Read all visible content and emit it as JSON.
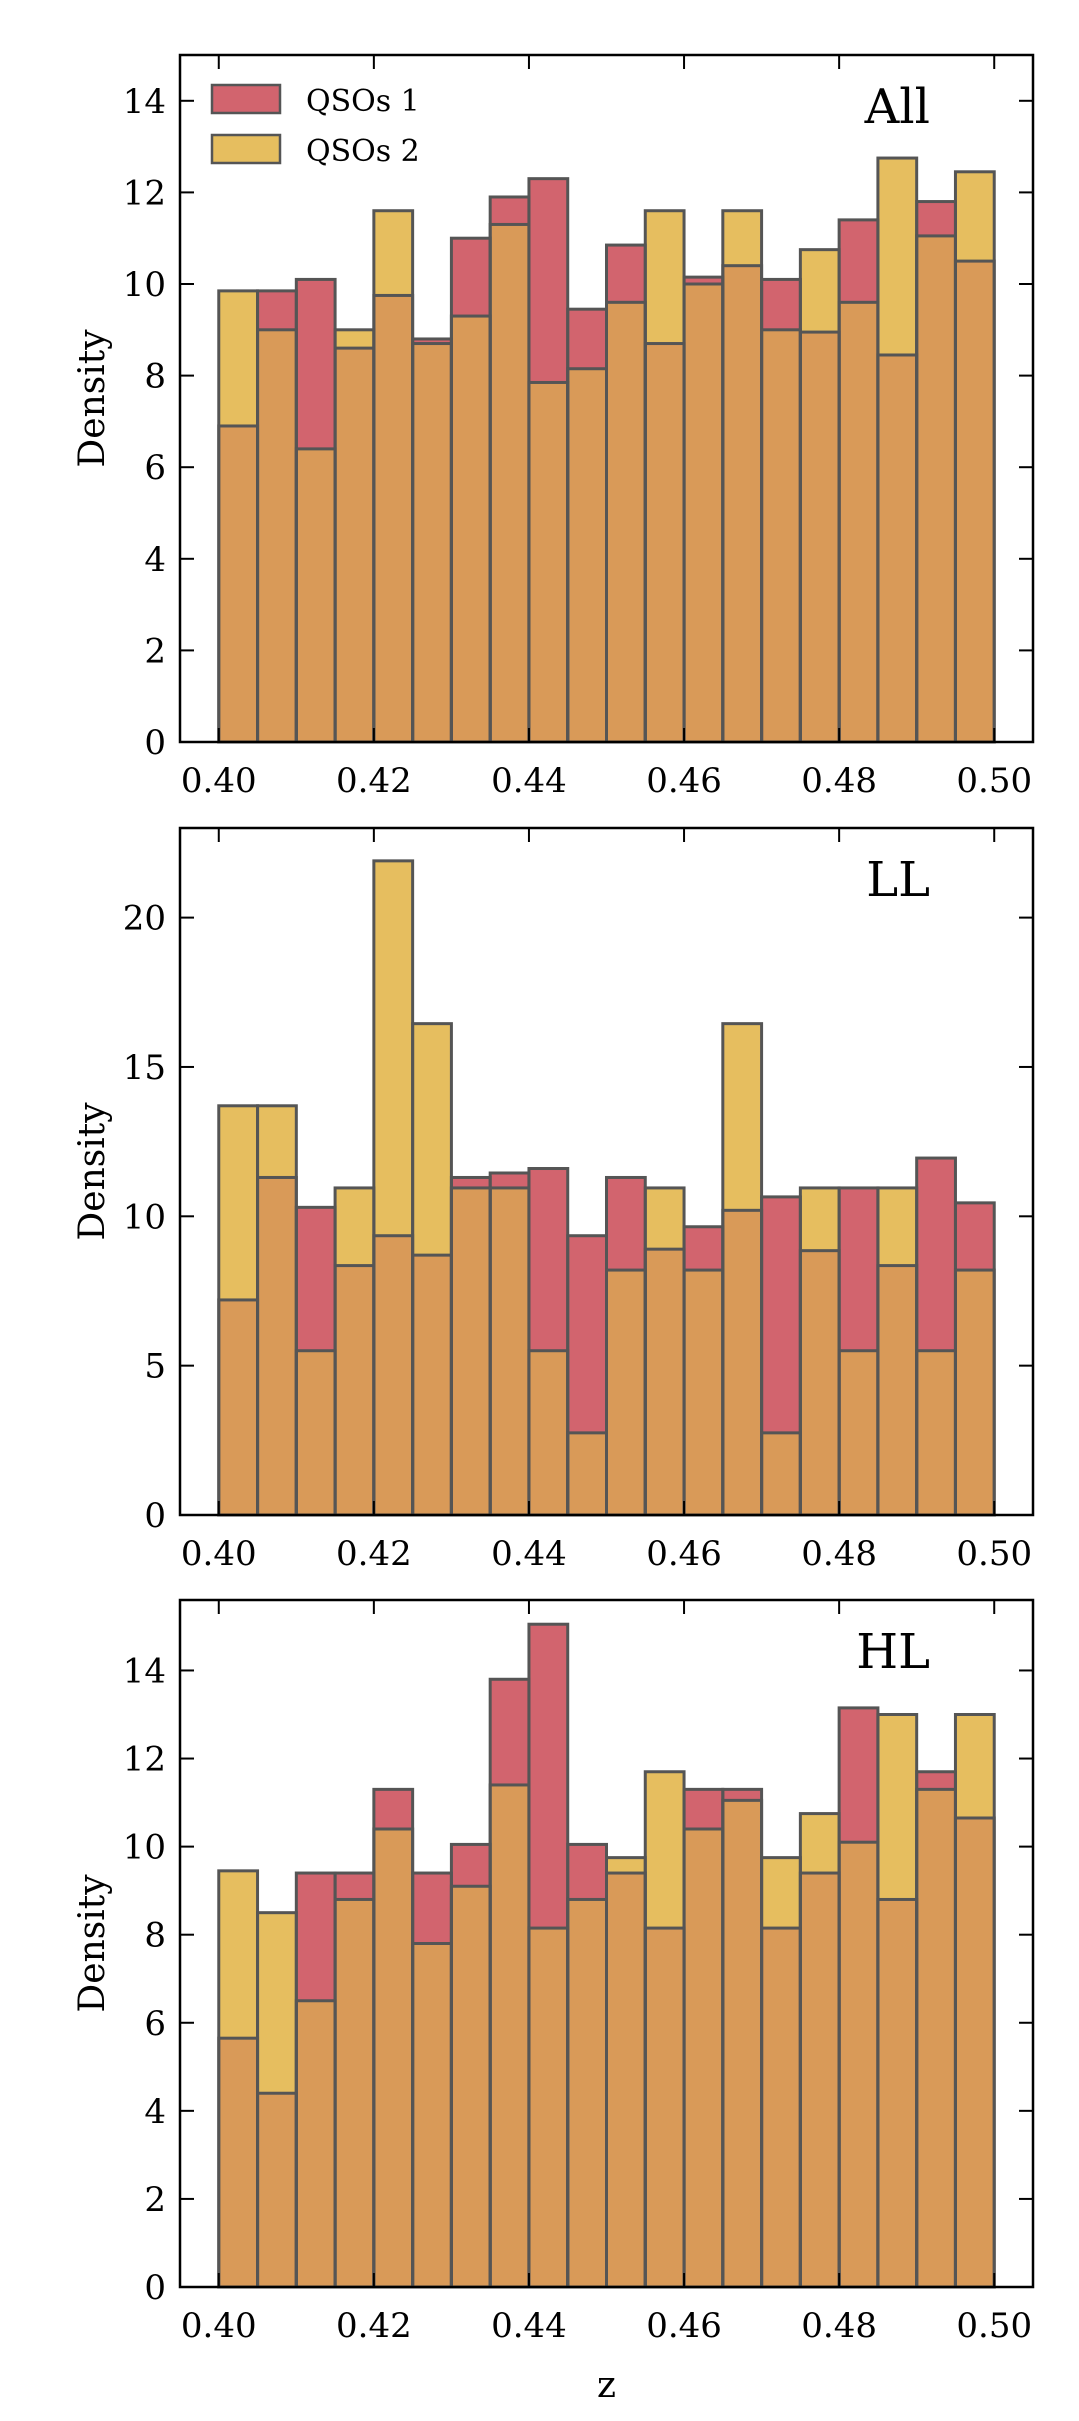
{
  "figure": {
    "xlabel": "z",
    "ylabel": "Density",
    "colors": {
      "qsos1": "#d2646e",
      "qsos2": "#e6be5f",
      "overlap": "#d99a58",
      "edge": "#555555"
    }
  },
  "chart_data": [
    {
      "type": "bar",
      "title": "All",
      "xlabel": "",
      "ylabel": "Density",
      "xlim": [
        0.395,
        0.505
      ],
      "ylim": [
        0,
        15
      ],
      "xticks": [
        "0.40",
        "0.42",
        "0.44",
        "0.46",
        "0.48",
        "0.50"
      ],
      "yticks": [
        "0",
        "2",
        "4",
        "6",
        "8",
        "10",
        "12",
        "14"
      ],
      "bin_edges": [
        0.4,
        0.405,
        0.41,
        0.415,
        0.42,
        0.425,
        0.43,
        0.435,
        0.44,
        0.445,
        0.45,
        0.455,
        0.46,
        0.465,
        0.47,
        0.475,
        0.48,
        0.485,
        0.49,
        0.495,
        0.5
      ],
      "legend": [
        "QSOs 1",
        "QSOs 2"
      ],
      "legend_position": "upper-left",
      "series": [
        {
          "name": "QSOs 1",
          "values": [
            6.9,
            9.85,
            10.1,
            8.6,
            9.75,
            8.8,
            11.0,
            11.9,
            12.3,
            9.45,
            10.85,
            8.7,
            10.15,
            10.4,
            10.1,
            8.95,
            11.4,
            8.45,
            11.8,
            10.5
          ]
        },
        {
          "name": "QSOs 2",
          "values": [
            9.85,
            9.0,
            6.4,
            9.0,
            11.6,
            8.7,
            9.3,
            11.3,
            7.85,
            8.15,
            9.6,
            11.6,
            10.0,
            11.6,
            9.0,
            10.75,
            9.6,
            12.75,
            11.05,
            12.45
          ]
        }
      ]
    },
    {
      "type": "bar",
      "title": "LL",
      "xlabel": "",
      "ylabel": "Density",
      "xlim": [
        0.395,
        0.505
      ],
      "ylim": [
        0,
        23
      ],
      "xticks": [
        "0.40",
        "0.42",
        "0.44",
        "0.46",
        "0.48",
        "0.50"
      ],
      "yticks": [
        "0",
        "5",
        "10",
        "15",
        "20"
      ],
      "bin_edges": [
        0.4,
        0.405,
        0.41,
        0.415,
        0.42,
        0.425,
        0.43,
        0.435,
        0.44,
        0.445,
        0.45,
        0.455,
        0.46,
        0.465,
        0.47,
        0.475,
        0.48,
        0.485,
        0.49,
        0.495,
        0.5
      ],
      "series": [
        {
          "name": "QSOs 1",
          "values": [
            7.2,
            11.3,
            10.3,
            8.35,
            9.35,
            8.7,
            11.3,
            11.45,
            11.6,
            9.35,
            11.3,
            8.9,
            9.65,
            10.2,
            10.65,
            8.85,
            10.95,
            8.35,
            11.95,
            10.45
          ]
        },
        {
          "name": "QSOs 2",
          "values": [
            13.7,
            13.7,
            5.5,
            10.95,
            21.9,
            16.45,
            10.95,
            10.95,
            5.5,
            2.75,
            8.2,
            10.95,
            8.2,
            16.45,
            2.75,
            10.95,
            5.5,
            10.95,
            5.5,
            8.2
          ]
        }
      ]
    },
    {
      "type": "bar",
      "title": "HL",
      "xlabel": "z",
      "ylabel": "Density",
      "xlim": [
        0.395,
        0.505
      ],
      "ylim": [
        0,
        15.6
      ],
      "xticks": [
        "0.40",
        "0.42",
        "0.44",
        "0.46",
        "0.48",
        "0.50"
      ],
      "yticks": [
        "0",
        "2",
        "4",
        "6",
        "8",
        "10",
        "12",
        "14"
      ],
      "bin_edges": [
        0.4,
        0.405,
        0.41,
        0.415,
        0.42,
        0.425,
        0.43,
        0.435,
        0.44,
        0.445,
        0.45,
        0.455,
        0.46,
        0.465,
        0.47,
        0.475,
        0.48,
        0.485,
        0.49,
        0.495,
        0.5
      ],
      "series": [
        {
          "name": "QSOs 1",
          "values": [
            5.65,
            4.4,
            9.4,
            9.4,
            11.3,
            9.4,
            10.05,
            13.8,
            15.05,
            10.05,
            9.4,
            8.15,
            11.3,
            11.3,
            8.15,
            9.4,
            13.15,
            8.8,
            11.7,
            10.65
          ]
        },
        {
          "name": "QSOs 2",
          "values": [
            9.45,
            8.5,
            6.5,
            8.8,
            10.4,
            7.8,
            9.1,
            11.4,
            8.15,
            8.8,
            9.75,
            11.7,
            10.4,
            11.05,
            9.75,
            10.75,
            10.1,
            13.0,
            11.3,
            13.0
          ]
        }
      ]
    }
  ]
}
